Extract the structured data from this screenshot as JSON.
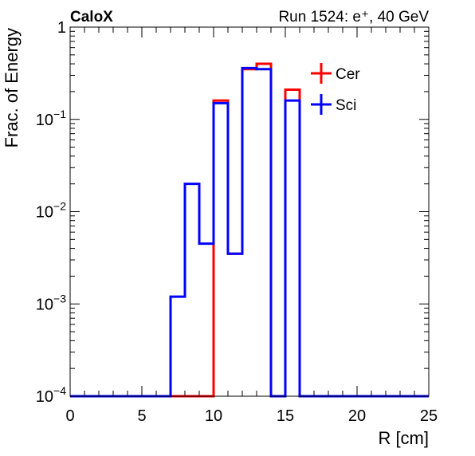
{
  "chart_data": {
    "type": "step-histogram",
    "header_left": "CaloX",
    "header_right": "Run 1524: e⁺, 40 GeV",
    "xlabel": "R [cm]",
    "ylabel": "Frac. of Energy",
    "xlim": [
      0,
      25
    ],
    "ylim": [
      0.0001,
      1
    ],
    "yscale": "log",
    "grid": false,
    "legend_position": "top-right inside",
    "x_ticks": [
      0,
      5,
      10,
      15,
      20,
      25
    ],
    "x_tick_labels": [
      "0",
      "5",
      "10",
      "15",
      "20",
      "25"
    ],
    "y_ticks": [
      {
        "value": 1,
        "base": "1",
        "exp": ""
      },
      {
        "value": 0.1,
        "base": "10",
        "exp": "−1"
      },
      {
        "value": 0.01,
        "base": "10",
        "exp": "−2"
      },
      {
        "value": 0.001,
        "base": "10",
        "exp": "−3"
      },
      {
        "value": 0.0001,
        "base": "10",
        "exp": "−4"
      }
    ],
    "bin_edges": [
      0,
      1,
      2,
      3,
      4,
      5,
      6,
      7,
      8,
      9,
      10,
      11,
      12,
      13,
      14,
      15,
      16,
      17,
      18,
      19,
      20,
      21,
      22,
      23,
      24,
      25
    ],
    "series": [
      {
        "name": "Cer",
        "color": "#ff0000",
        "values": [
          0,
          0,
          0,
          0,
          0,
          0,
          0,
          0,
          0,
          0,
          0.16,
          0.0035,
          0.35,
          0.4,
          0,
          0.21,
          0,
          0,
          0,
          0,
          0,
          0,
          0,
          0,
          0
        ]
      },
      {
        "name": "Sci",
        "color": "#0000ff",
        "values": [
          0,
          0,
          0,
          0,
          0,
          0,
          0,
          0.0012,
          0.02,
          0.0045,
          0.15,
          0.0035,
          0.36,
          0.35,
          0,
          0.16,
          0,
          0,
          0,
          0,
          0,
          0,
          0,
          0,
          0
        ]
      }
    ]
  }
}
